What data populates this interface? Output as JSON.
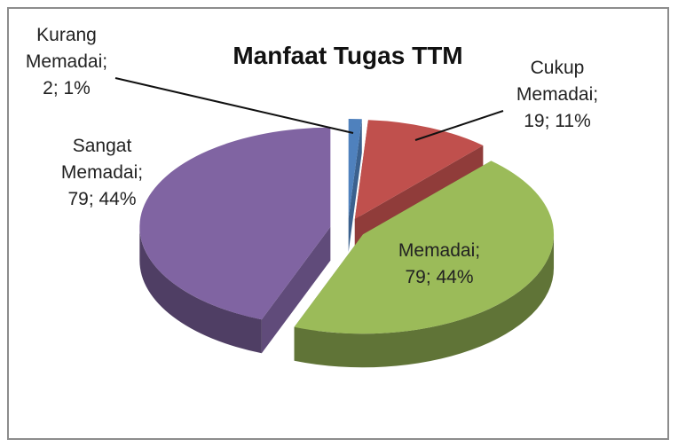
{
  "chart_data": {
    "type": "pie",
    "title": "Manfaat Tugas TTM",
    "categories": [
      "Kurang Memadai;",
      "Cukup Memadai;",
      "Memadai;",
      "Sangat Memadai;"
    ],
    "values": [
      2,
      19,
      79,
      79
    ],
    "value_labels": [
      "2; 1%",
      "19; 11%",
      "79; 44%",
      "79; 44%"
    ],
    "colors": [
      "#4f81bd",
      "#c0504d",
      "#9bbb59",
      "#8064a2"
    ]
  }
}
